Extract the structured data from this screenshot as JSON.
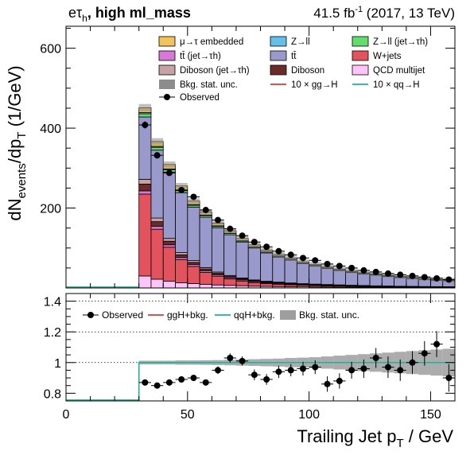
{
  "chart_data": {
    "type": "stacked-histogram",
    "title": {
      "channel": "eτ",
      "channel_sub": "h",
      "category": ", high ml_mass",
      "lumi": "41.5 fb",
      "lumi_sup": "-1",
      "conditions": " (2017, 13 TeV)"
    },
    "xlabel": "Trailing Jet p_T / GeV",
    "ylabel_main": "dN_events/dp_T (1/GeV)",
    "xlim": [
      0,
      160
    ],
    "ylim_main": [
      0,
      655
    ],
    "ylim_ratio": [
      0.75,
      1.45
    ],
    "x_ticks": [
      0,
      50,
      100,
      150
    ],
    "y_ticks_main": [
      200,
      400,
      600
    ],
    "y_ticks_ratio": [
      0.8,
      1,
      1.2,
      1.4
    ],
    "bin_edges": [
      30,
      35,
      40,
      45,
      50,
      55,
      60,
      65,
      70,
      75,
      80,
      85,
      90,
      95,
      100,
      105,
      110,
      115,
      120,
      125,
      130,
      135,
      140,
      145,
      150,
      155,
      160
    ],
    "stack_order": [
      "qcd",
      "w_jets",
      "ttbar_jet",
      "diboson",
      "diboson_jet",
      "ttbar",
      "zll_jet",
      "zll",
      "emb"
    ],
    "series": [
      {
        "key": "qcd",
        "name": "QCD multijet",
        "color": "#fcc4f9",
        "values": [
          30,
          22,
          17,
          13,
          11,
          9,
          7.5,
          6.5,
          5.5,
          4.5,
          4,
          3.5,
          3,
          2.8,
          2.4,
          2.2,
          2,
          1.8,
          1.6,
          1.4,
          1.2,
          1.1,
          1,
          0.9,
          0.8,
          0.7
        ]
      },
      {
        "key": "w_jets",
        "name": "W+jets",
        "color": "#e2535d",
        "values": [
          205,
          125,
          85,
          58,
          43,
          30,
          22,
          16,
          12,
          9,
          7,
          6,
          5,
          4,
          3.5,
          3,
          2.6,
          2.2,
          1.9,
          1.6,
          1.4,
          1.2,
          1,
          0.9,
          0.8,
          0.7
        ]
      },
      {
        "key": "ttbar_jet",
        "name": "tt̄ (jet→τh)",
        "color": "#d779d6",
        "values": [
          8,
          7,
          6,
          5,
          4.5,
          4,
          3.5,
          3,
          2.8,
          2.5,
          2.2,
          2,
          1.8,
          1.6,
          1.5,
          1.4,
          1.3,
          1.2,
          1.1,
          1,
          1,
          0.9,
          0.9,
          0.8,
          0.8,
          0.8
        ]
      },
      {
        "key": "diboson",
        "name": "Diboson",
        "color": "#6c2b2b",
        "values": [
          17,
          12,
          9,
          7,
          5.5,
          4.5,
          3.8,
          3.2,
          2.7,
          2.3,
          2,
          1.7,
          1.5,
          1.3,
          1.2,
          1.1,
          1,
          0.9,
          0.8,
          0.7,
          0.7,
          0.6,
          0.6,
          0.5,
          0.5,
          0.5
        ]
      },
      {
        "key": "diboson_jet",
        "name": "Diboson (jet→τh)",
        "color": "#c7a2a2",
        "values": [
          12,
          9,
          7,
          5.5,
          4.5,
          3.5,
          3,
          2.5,
          2.1,
          1.8,
          1.6,
          1.4,
          1.2,
          1.1,
          1,
          0.9,
          0.8,
          0.7,
          0.7,
          0.6,
          0.6,
          0.5,
          0.5,
          0.5,
          0.4,
          0.4
        ]
      },
      {
        "key": "ttbar",
        "name": "tt̄",
        "color": "#9999cc",
        "values": [
          156,
          170,
          166,
          150,
          134,
          126,
          111,
          102,
          90,
          80,
          71,
          63,
          57,
          50,
          45,
          40,
          36,
          32,
          29,
          27,
          24,
          22,
          20,
          18,
          16,
          15
        ]
      },
      {
        "key": "zll_jet",
        "name": "Z→ll (jet→τh)",
        "color": "#64de6a",
        "values": [
          8,
          7,
          6,
          5,
          4.5,
          4,
          3.5,
          3,
          2.6,
          2.3,
          2,
          1.8,
          1.6,
          1.4,
          1.3,
          1.2,
          1.1,
          1,
          0.9,
          0.8,
          0.8,
          0.7,
          0.7,
          0.6,
          0.6,
          0.5
        ]
      },
      {
        "key": "zll",
        "name": "Z→ll",
        "color": "#64c0e8",
        "values": [
          3,
          2.5,
          2,
          1.8,
          1.6,
          1.4,
          1.2,
          1,
          0.9,
          0.8,
          0.7,
          0.6,
          0.6,
          0.5,
          0.5,
          0.4,
          0.4,
          0.4,
          0.3,
          0.3,
          0.3,
          0.3,
          0.2,
          0.2,
          0.2,
          0.2
        ]
      },
      {
        "key": "emb",
        "name": "μ→τ embedded",
        "color": "#f2c35b",
        "values": [
          12,
          12,
          11,
          10,
          9,
          8,
          7,
          6,
          5.3,
          4.7,
          4.1,
          3.7,
          3.3,
          2.9,
          2.6,
          2.4,
          2.2,
          2,
          1.8,
          1.6,
          1.5,
          1.4,
          1.3,
          1.2,
          1.1,
          1
        ]
      }
    ],
    "signal_ggH": {
      "name": "10 × gg→H",
      "color": "#d63a3a"
    },
    "signal_qqH": {
      "name": "10 × qq→H",
      "color": "#1ab39b"
    },
    "observed": {
      "name": "Observed",
      "values": [
        408,
        332,
        288,
        245,
        228,
        195,
        170,
        148,
        131,
        115,
        103,
        92,
        83,
        75,
        69,
        60,
        55,
        50,
        44,
        40,
        36,
        33,
        30,
        27,
        24,
        21
      ],
      "errors": [
        9,
        8,
        8,
        7,
        7,
        6.5,
        6,
        5.5,
        5,
        5,
        4.5,
        4.5,
        4,
        4,
        4,
        3.5,
        3.5,
        3.5,
        3,
        3,
        3,
        3,
        2.8,
        2.6,
        2.5,
        2.4
      ]
    },
    "ratio": {
      "values": [
        0.87,
        0.85,
        0.87,
        0.89,
        0.9,
        0.87,
        0.95,
        1.03,
        1.01,
        0.92,
        0.89,
        0.94,
        0.95,
        0.96,
        0.97,
        0.86,
        0.88,
        0.95,
        0.96,
        1.03,
        0.97,
        0.95,
        1.0,
        1.06,
        1.12,
        0.9
      ],
      "errors": [
        0.02,
        0.02,
        0.02,
        0.02,
        0.02,
        0.02,
        0.025,
        0.03,
        0.03,
        0.035,
        0.035,
        0.04,
        0.04,
        0.045,
        0.045,
        0.05,
        0.05,
        0.055,
        0.06,
        0.065,
        0.07,
        0.07,
        0.075,
        0.08,
        0.085,
        0.09
      ],
      "band": [
        0.012,
        0.012,
        0.012,
        0.014,
        0.014,
        0.015,
        0.016,
        0.018,
        0.02,
        0.022,
        0.024,
        0.026,
        0.03,
        0.032,
        0.035,
        0.04,
        0.045,
        0.05,
        0.055,
        0.06,
        0.065,
        0.07,
        0.075,
        0.08,
        0.085,
        0.09
      ]
    },
    "legend_main": [
      {
        "key": "emb",
        "label": "μ→τ embedded",
        "kind": "box",
        "color": "#f2c35b"
      },
      {
        "key": "zll",
        "label": "Z→ll",
        "kind": "box",
        "color": "#64c0e8"
      },
      {
        "key": "zll_jet",
        "label": "Z→ll (jet→τh)",
        "kind": "box",
        "color": "#64de6a"
      },
      {
        "key": "ttbar_jet",
        "label": "tt̄ (jet→τh)",
        "kind": "box",
        "color": "#d779d6"
      },
      {
        "key": "ttbar",
        "label": "tt̄",
        "kind": "box",
        "color": "#9999cc"
      },
      {
        "key": "w_jets",
        "label": "W+jets",
        "kind": "box",
        "color": "#e2535d"
      },
      {
        "key": "diboson_jet",
        "label": "Diboson (jet→τh)",
        "kind": "box",
        "color": "#c7a2a2"
      },
      {
        "key": "diboson",
        "label": "Diboson",
        "kind": "box",
        "color": "#6c2b2b"
      },
      {
        "key": "qcd",
        "label": "QCD multijet",
        "kind": "box",
        "color": "#fcc4f9"
      },
      {
        "key": "unc",
        "label": "Bkg. stat. unc.",
        "kind": "grey",
        "color": "#8c8c8c"
      },
      {
        "key": "ggh",
        "label": "10 × gg→H",
        "kind": "line",
        "color": "#d63a3a"
      },
      {
        "key": "qqh",
        "label": "10 × qq→H",
        "kind": "line",
        "color": "#1ab39b"
      },
      {
        "key": "obs",
        "label": "Observed",
        "kind": "marker",
        "color": "#000000"
      }
    ],
    "legend_ratio": [
      {
        "label": "Observed",
        "kind": "marker",
        "color": "#000000"
      },
      {
        "label": "ggH+bkg.",
        "kind": "line",
        "color": "#d63a3a"
      },
      {
        "label": "qqH+bkg.",
        "kind": "line",
        "color": "#1ab39b"
      },
      {
        "label": "Bkg. stat. unc.",
        "kind": "grey",
        "color": "#9e9e9e"
      }
    ]
  }
}
